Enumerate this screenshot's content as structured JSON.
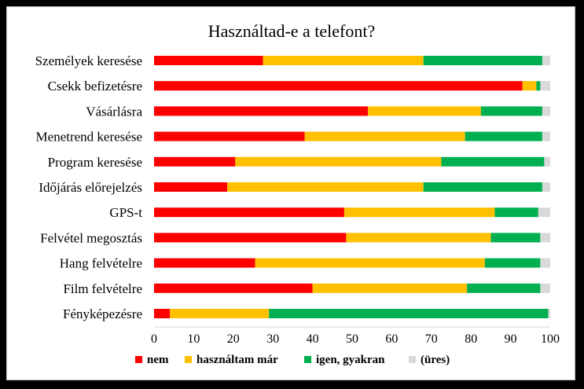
{
  "chart_data": {
    "type": "bar",
    "orientation": "horizontal",
    "stacked": true,
    "title": "Használtad-e a telefont?",
    "categories": [
      "Személyek keresése",
      "Csekk befizetésre",
      "Vásárlásra",
      "Menetrend keresése",
      "Program keresése",
      "Időjárás előrejelzés",
      "GPS-t",
      "Felvétel megosztás",
      "Hang felvételre",
      "Film felvételre",
      "Fényképezésre"
    ],
    "series": [
      {
        "name": "nem",
        "color": "#ff0000",
        "values": [
          27.5,
          93,
          54,
          38,
          20.5,
          18.5,
          48,
          48.5,
          25.5,
          40,
          4
        ]
      },
      {
        "name": "használtam már",
        "color": "#ffc000",
        "values": [
          40.5,
          3.5,
          28.5,
          40.5,
          52,
          49.5,
          38,
          36.5,
          58,
          39,
          25
        ]
      },
      {
        "name": "igen, gyakran",
        "color": "#00b050",
        "values": [
          30,
          1,
          15.5,
          19.5,
          26,
          30,
          11,
          12.5,
          14,
          18.5,
          70.5
        ]
      },
      {
        "name": "(üres)",
        "color": "#d9d9d9",
        "values": [
          2,
          2.5,
          2,
          2,
          1.5,
          2,
          3,
          2.5,
          2.5,
          2.5,
          0.5
        ]
      }
    ],
    "xlim": [
      0,
      100
    ],
    "xticks": [
      "0",
      "10",
      "20",
      "30",
      "40",
      "50",
      "60",
      "70",
      "80",
      "90",
      "100"
    ],
    "grid": false,
    "legend_position": "bottom"
  }
}
